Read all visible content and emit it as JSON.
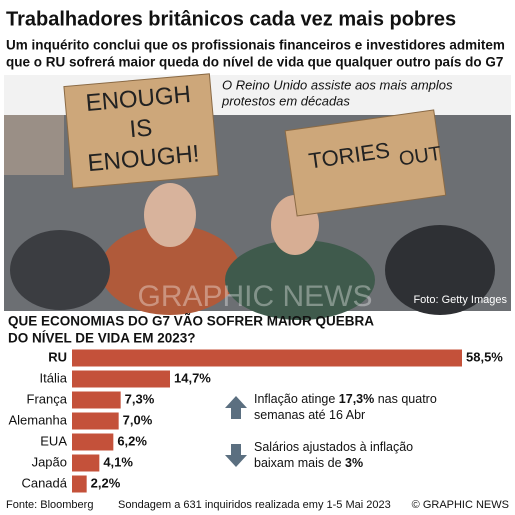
{
  "chart_data": {
    "type": "bar",
    "orientation": "horizontal",
    "title": "Trabalhadores britânicos cada vez mais pobres",
    "subtitle": [
      "Um inquérito conclui que os profissionais financeiros e investidores admitem",
      "que o RU sofrerá maior queda do nível de vida que qualquer outro país do G7"
    ],
    "photo": {
      "caption": [
        "O Reino Unido assiste aos mais amplos",
        "protestos em décadas"
      ],
      "credit": "Foto: Getty Images",
      "signs": [
        [
          "ENOUGH",
          "IS",
          "ENOUGH!"
        ],
        [
          "TORIES",
          "OUT"
        ]
      ],
      "watermark": "GRAPHIC NEWS"
    },
    "question": [
      "QUE ECONOMIAS DO G7 VÃO SOFRER MAIOR QUEBRA",
      "DO NÍVEL DE VIDA EM 2023?"
    ],
    "categories": [
      "RU",
      "Itália",
      "França",
      "Alemanha",
      "EUA",
      "Japão",
      "Canadá"
    ],
    "values": [
      58.5,
      14.7,
      7.3,
      7.0,
      6.2,
      4.1,
      2.2
    ],
    "value_labels": [
      "58,5%",
      "14,7%",
      "7,3%",
      "7,0%",
      "6,2%",
      "4,1%",
      "2,2%"
    ],
    "color": "#c4513a",
    "annotations": [
      {
        "direction": "up",
        "lines": [
          [
            {
              "text": "Inflação atinge ",
              "bold": false
            },
            {
              "text": "17,3%",
              "bold": true
            },
            {
              "text": " nas quatro",
              "bold": false
            }
          ],
          [
            {
              "text": "semanas até 16 Abr",
              "bold": false
            }
          ]
        ]
      },
      {
        "direction": "down",
        "lines": [
          [
            {
              "text": "Salários ajustados à inflação",
              "bold": false
            }
          ],
          [
            {
              "text": "baixam mais de ",
              "bold": false
            },
            {
              "text": "3%",
              "bold": true
            }
          ]
        ]
      }
    ],
    "source": "Fonte: Bloomberg",
    "note": "Sondagem a 631 inquiridos realizada emy 1-5 Mai 2023",
    "copyright": "© GRAPHIC NEWS"
  }
}
